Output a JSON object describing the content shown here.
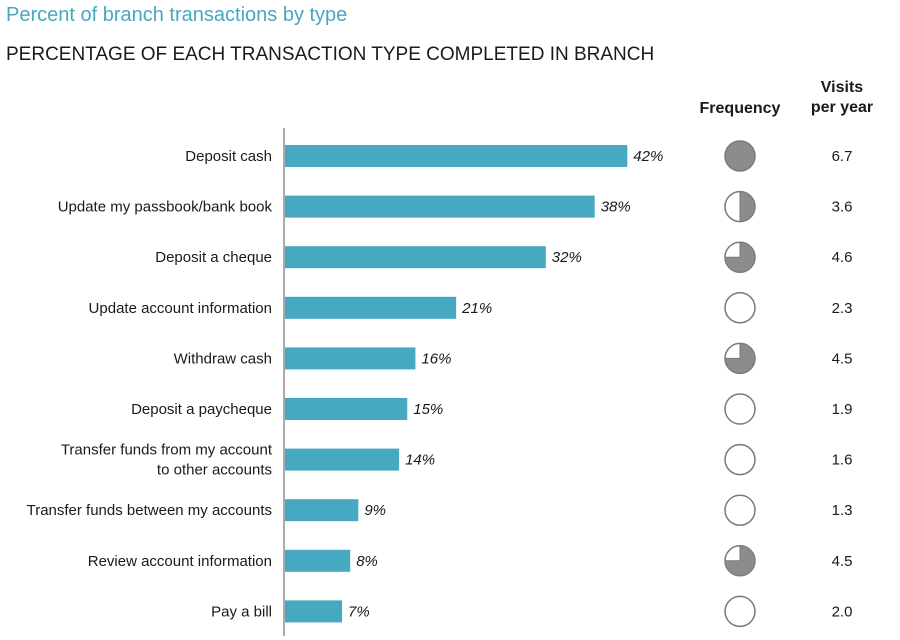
{
  "title": "Percent of branch transactions by type",
  "subtitle": "PERCENTAGE OF EACH TRANSACTION TYPE COMPLETED IN BRANCH",
  "columns": {
    "frequency": "Frequency",
    "visits_line1": "Visits",
    "visits_line2": "per year"
  },
  "colors": {
    "bar": "#47a8c2",
    "title": "#4aa6bf",
    "pie_fill": "#8c8c8c",
    "pie_stroke": "#7a7a7a"
  },
  "chart_data": {
    "type": "bar",
    "orientation": "horizontal",
    "title": "Percent of branch transactions by type",
    "subtitle": "PERCENTAGE OF EACH TRANSACTION TYPE COMPLETED IN BRANCH",
    "categories": [
      [
        "Deposit cash"
      ],
      [
        "Update my passbook/bank book"
      ],
      [
        "Deposit a cheque"
      ],
      [
        "Update account information"
      ],
      [
        "Withdraw cash"
      ],
      [
        "Deposit a paycheque"
      ],
      [
        "Transfer funds from my account",
        "to other accounts"
      ],
      [
        "Transfer funds between my accounts"
      ],
      [
        "Review account information"
      ],
      [
        "Pay a bill"
      ]
    ],
    "values": [
      42,
      38,
      32,
      21,
      16,
      15,
      14,
      9,
      8,
      7
    ],
    "value_labels": [
      "42%",
      "38%",
      "32%",
      "21%",
      "16%",
      "15%",
      "14%",
      "9%",
      "8%",
      "7%"
    ],
    "frequency_fill": [
      1.0,
      0.5,
      0.75,
      0,
      0.75,
      0,
      0,
      0,
      0.75,
      0
    ],
    "visits_per_year": [
      "6.7",
      "3.6",
      "4.6",
      "2.3",
      "4.5",
      "1.9",
      "1.6",
      "1.3",
      "4.5",
      "2.0"
    ],
    "grid": false,
    "legend": "none"
  }
}
